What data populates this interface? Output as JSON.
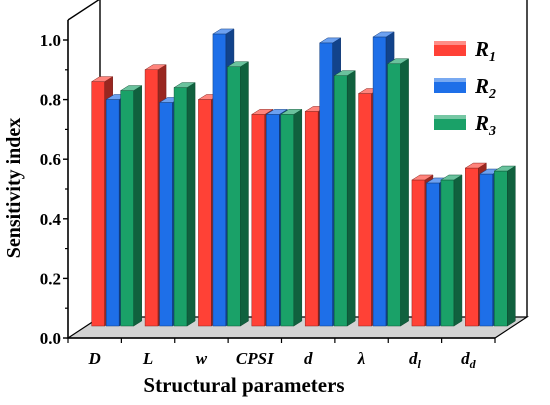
{
  "chart_data": {
    "type": "bar",
    "title": "",
    "xlabel": "Structural parameters",
    "ylabel": "Sensitivity index",
    "ylim": [
      0,
      1.0
    ],
    "yticks": [
      "0.0",
      "0.2",
      "0.4",
      "0.6",
      "0.8",
      "1.0"
    ],
    "categories": [
      {
        "base": "D",
        "sub": ""
      },
      {
        "base": "L",
        "sub": ""
      },
      {
        "base": "w",
        "sub": ""
      },
      {
        "base": "CPSI",
        "sub": ""
      },
      {
        "base": "d",
        "sub": ""
      },
      {
        "base": "λ",
        "sub": ""
      },
      {
        "base": "d",
        "sub": "l"
      },
      {
        "base": "d",
        "sub": "d"
      }
    ],
    "series": [
      {
        "name": "R",
        "sub": "1",
        "color": "#ff4136",
        "values": [
          0.82,
          0.86,
          0.76,
          0.71,
          0.72,
          0.78,
          0.49,
          0.53
        ]
      },
      {
        "name": "R",
        "sub": "2",
        "color": "#1e6fe8",
        "values": [
          0.76,
          0.75,
          0.98,
          0.71,
          0.95,
          0.97,
          0.48,
          0.51
        ]
      },
      {
        "name": "R",
        "sub": "3",
        "color": "#1aa168",
        "values": [
          0.79,
          0.8,
          0.87,
          0.71,
          0.84,
          0.88,
          0.49,
          0.52
        ]
      }
    ],
    "legend_position": "top-right",
    "grid": false
  }
}
